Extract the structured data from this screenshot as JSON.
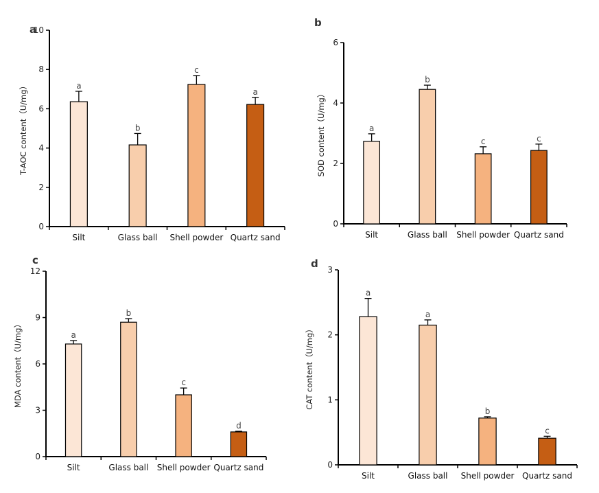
{
  "colors": {
    "Silt": "#FCE6D6",
    "Glass ball": "#F8CEAC",
    "Shell powder": "#F5B27F",
    "Quartz sand": "#C55E14"
  },
  "chart_data": [
    {
      "type": "bar",
      "panel": "a",
      "title": "",
      "xlabel": "",
      "ylabel": "T-AOC content（U/mg）",
      "categories": [
        "Silt",
        "Glass ball",
        "Shell powder",
        "Quartz sand"
      ],
      "values": [
        6.36,
        4.16,
        7.24,
        6.22
      ],
      "error_upper": [
        0.53,
        0.58,
        0.45,
        0.36
      ],
      "significance": [
        "a",
        "b",
        "c",
        "a"
      ],
      "ylim": [
        0,
        10
      ],
      "yticks": [
        "0",
        "2",
        "4",
        "6",
        "8",
        "10"
      ],
      "grid": false,
      "legend": "none"
    },
    {
      "type": "bar",
      "panel": "b",
      "title": "",
      "xlabel": "",
      "ylabel": "SOD content（U/mg）",
      "categories": [
        "Silt",
        "Glass ball",
        "Shell powder",
        "Quartz sand"
      ],
      "values": [
        2.73,
        4.45,
        2.32,
        2.43
      ],
      "error_upper": [
        0.25,
        0.14,
        0.23,
        0.21
      ],
      "significance": [
        "a",
        "b",
        "c",
        "c"
      ],
      "ylim": [
        0,
        6
      ],
      "yticks": [
        "0",
        "2",
        "4",
        "6"
      ],
      "grid": false,
      "legend": "none"
    },
    {
      "type": "bar",
      "panel": "c",
      "title": "",
      "xlabel": "",
      "ylabel": "MDA content（U/mg）",
      "categories": [
        "Silt",
        "Glass ball",
        "Shell powder",
        "Quartz sand"
      ],
      "values": [
        7.29,
        8.7,
        4.0,
        1.6
      ],
      "error_upper": [
        0.22,
        0.23,
        0.44,
        0.04
      ],
      "significance": [
        "a",
        "b",
        "c",
        "d"
      ],
      "ylim": [
        0,
        12
      ],
      "yticks": [
        "0",
        "3",
        "6",
        "9",
        "12"
      ],
      "grid": false,
      "legend": "none"
    },
    {
      "type": "bar",
      "panel": "d",
      "title": "",
      "xlabel": "",
      "ylabel": "CAT content（U/mg）",
      "categories": [
        "Silt",
        "Glass ball",
        "Shell powder",
        "Quartz sand"
      ],
      "values": [
        2.28,
        2.15,
        0.72,
        0.41
      ],
      "error_upper": [
        0.28,
        0.08,
        0.02,
        0.03
      ],
      "significance": [
        "a",
        "a",
        "b",
        "c"
      ],
      "ylim": [
        0,
        3
      ],
      "yticks": [
        "0",
        "1",
        "2",
        "3"
      ],
      "grid": false,
      "legend": "none"
    }
  ]
}
